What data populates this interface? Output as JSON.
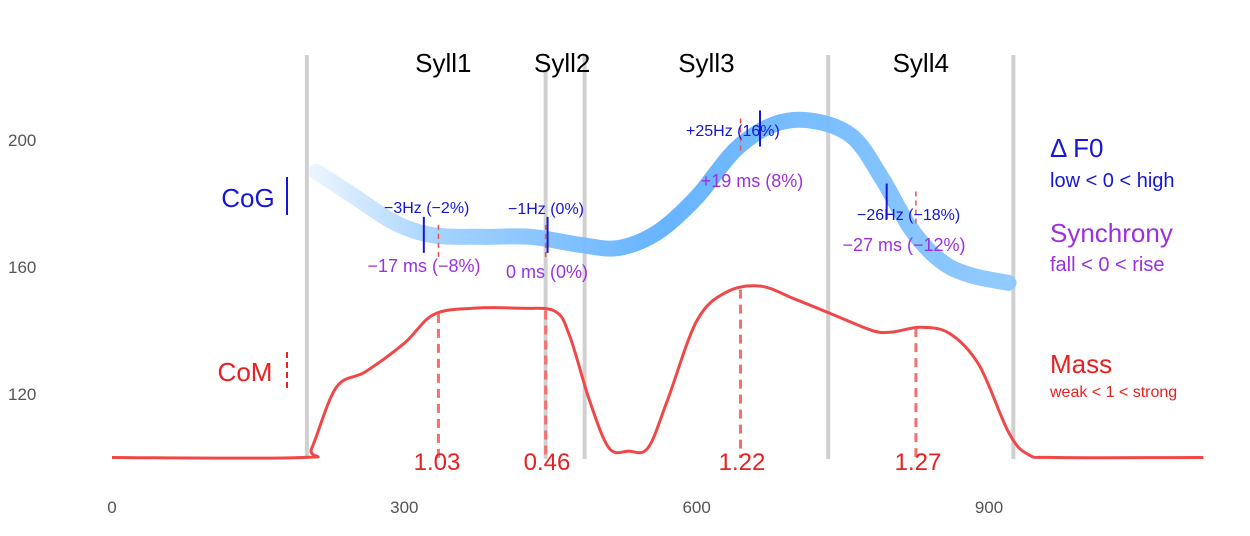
{
  "chart_data": {
    "type": "line",
    "x_ticks": [
      0,
      300,
      600,
      900
    ],
    "y_ticks": [
      120,
      160,
      200
    ],
    "xlim": [
      -10,
      1130
    ],
    "ylim": [
      95,
      230
    ],
    "grid": false,
    "boundaries": [
      200,
      485,
      735,
      925
    ],
    "syllables": [
      {
        "label": "Syll1",
        "x": 340
      },
      {
        "label": "Syll2",
        "x": 462
      },
      {
        "label": "Syll3",
        "x": 610
      },
      {
        "label": "Syll4",
        "x": 830
      }
    ],
    "series": [
      {
        "name": "CoG",
        "color": "#4da6ff",
        "points": [
          [
            210,
            190
          ],
          [
            245,
            183
          ],
          [
            290,
            174
          ],
          [
            330,
            170
          ],
          [
            380,
            169.5
          ],
          [
            430,
            169.5
          ],
          [
            480,
            167
          ],
          [
            520,
            166
          ],
          [
            560,
            171
          ],
          [
            600,
            182
          ],
          [
            640,
            197
          ],
          [
            680,
            205
          ],
          [
            720,
            206
          ],
          [
            760,
            201
          ],
          [
            790,
            188
          ],
          [
            820,
            172
          ],
          [
            850,
            162
          ],
          [
            880,
            157.5
          ],
          [
            920,
            155
          ]
        ]
      },
      {
        "name": "CoM",
        "color": "#f04848",
        "points": [
          [
            0,
            100
          ],
          [
            195,
            100
          ],
          [
            205,
            103
          ],
          [
            230,
            122
          ],
          [
            260,
            127
          ],
          [
            300,
            136
          ],
          [
            330,
            145
          ],
          [
            370,
            147
          ],
          [
            420,
            147
          ],
          [
            455,
            146
          ],
          [
            470,
            138
          ],
          [
            490,
            118
          ],
          [
            510,
            103
          ],
          [
            530,
            102
          ],
          [
            550,
            103
          ],
          [
            570,
            118
          ],
          [
            600,
            143
          ],
          [
            630,
            152
          ],
          [
            665,
            154
          ],
          [
            700,
            150
          ],
          [
            740,
            145
          ],
          [
            780,
            140
          ],
          [
            800,
            139.5
          ],
          [
            830,
            141
          ],
          [
            860,
            139
          ],
          [
            890,
            129
          ],
          [
            920,
            108
          ],
          [
            940,
            101
          ],
          [
            970,
            100
          ],
          [
            1120,
            100
          ]
        ]
      }
    ],
    "annotations": [
      {
        "x_cog": 320,
        "x_mass": 335,
        "y_cog": 169.5,
        "f0_label": "−3Hz (−2%)",
        "sync_label": "−17 ms (−8%)",
        "mass_label": "1.03"
      },
      {
        "x_cog": 447,
        "x_mass": 445,
        "y_cog": 169.5,
        "f0_label": "−1Hz (0%)",
        "sync_label": "0 ms (0%)",
        "mass_label": "0.46"
      },
      {
        "x_cog": 665,
        "x_mass": 645,
        "y_cog": 203,
        "f0_label": "+25Hz (16%)",
        "sync_label": "+19 ms (8%)",
        "mass_label": "1.22"
      },
      {
        "x_cog": 795,
        "x_mass": 825,
        "y_cog": 180,
        "f0_label": "−26Hz (−18%)",
        "sync_label": "−27 ms (−12%)",
        "mass_label": "1.27"
      }
    ],
    "left_labels": {
      "cog": "CoG",
      "com": "CoM"
    },
    "legend": {
      "f0_title": "Δ F0",
      "f0_sub": "low < 0 < high",
      "sync_title": "Synchrony",
      "sync_sub": "fall < 0 < rise",
      "mass_title": "Mass",
      "mass_sub": "weak < 1 < strong"
    },
    "colors": {
      "cog": "#4da6ff",
      "com": "#f04848",
      "f0": "#1616d8",
      "sync": "#9b30e0",
      "mass": "#e82020",
      "boundary": "#d0d0d0",
      "tick": "#555555"
    }
  }
}
